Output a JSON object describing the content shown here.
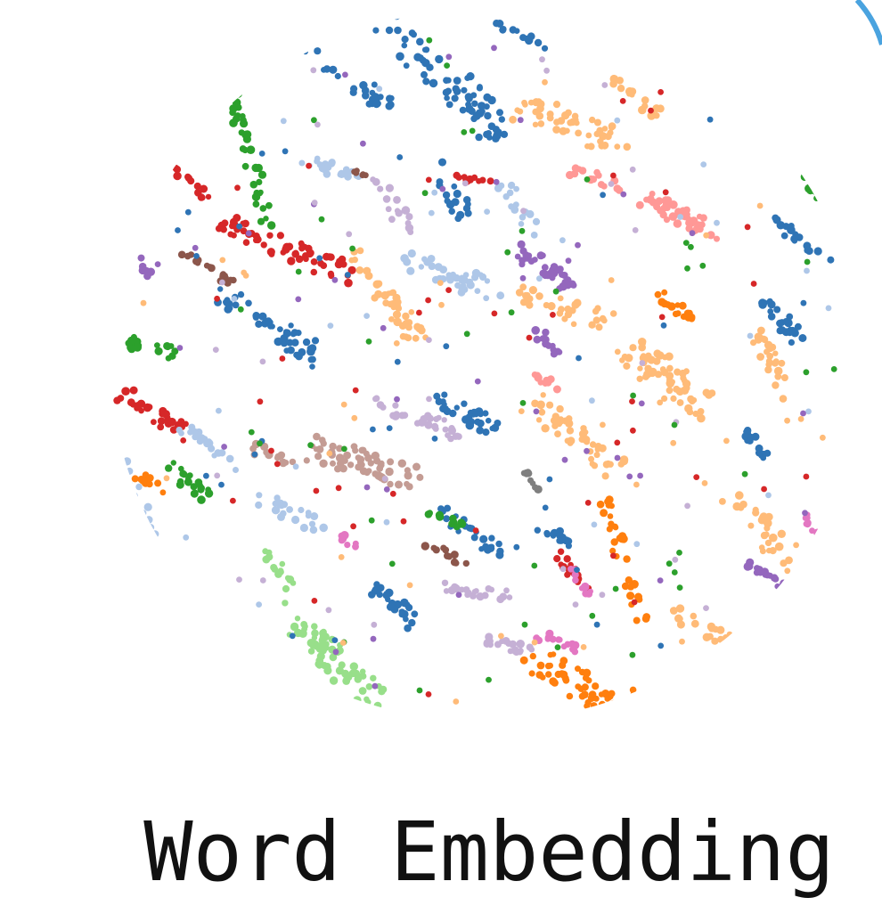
{
  "caption": "Word Embedding",
  "colors": {
    "blue": "#2f74b5",
    "light_blue": "#aec7e8",
    "orange": "#ff7f0e",
    "light_orange": "#ffbb78",
    "green": "#2ca02c",
    "light_green": "#98df8a",
    "red": "#d62728",
    "pink": "#ff9896",
    "purple": "#9467bd",
    "lavender": "#c5b0d5",
    "brown": "#8c564b",
    "tan": "#c49c94",
    "magenta": "#e377c2",
    "gray": "#7f7f7f",
    "accent_arc": "#4aa3df"
  },
  "icons": {
    "corner_arc": "partial-blue-circle-arc"
  }
}
